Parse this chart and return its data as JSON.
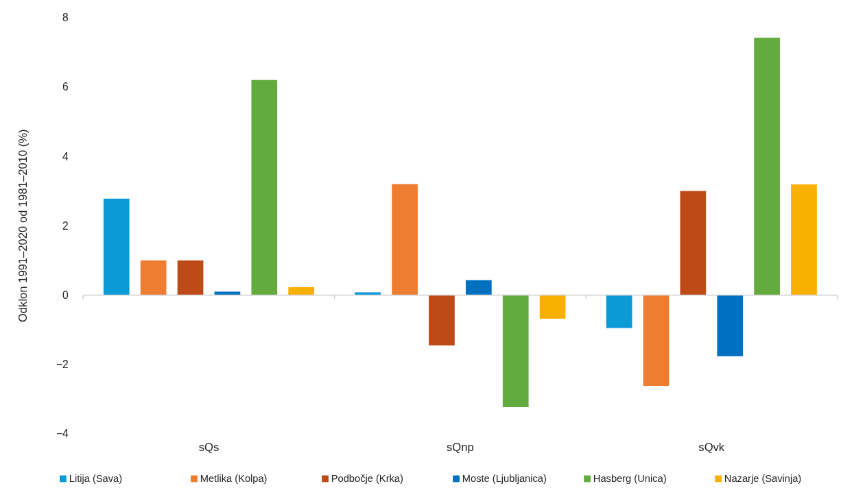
{
  "chart_data": {
    "type": "bar",
    "ylabel": "Odklon 1991–2020 od 1981–2010 (%)",
    "categories": [
      "sQs",
      "sQnp",
      "sQvk"
    ],
    "series": [
      {
        "name": "Litija (Sava)",
        "color": "#0a9ad6",
        "values": [
          2.78,
          0.08,
          -0.95
        ]
      },
      {
        "name": "Metlika (Kolpa)",
        "color": "#ee7d31",
        "values": [
          1.0,
          3.2,
          -2.62
        ]
      },
      {
        "name": "Podbočje (Krka)",
        "color": "#be4b17",
        "values": [
          1.0,
          -1.45,
          3.0
        ]
      },
      {
        "name": "Moste (Ljubljanica)",
        "color": "#0070c0",
        "values": [
          0.1,
          0.43,
          -1.76
        ]
      },
      {
        "name": "Hasberg (Unica)",
        "color": "#62ab3c",
        "values": [
          6.2,
          -3.23,
          7.42
        ]
      },
      {
        "name": "Nazarje (Savinja)",
        "color": "#f9b000",
        "values": [
          0.23,
          -0.68,
          3.19
        ]
      }
    ],
    "ylim": [
      -4,
      8
    ],
    "yticks": [
      {
        "value": -4,
        "label": "−4"
      },
      {
        "value": -2,
        "label": "−2"
      },
      0,
      2,
      4,
      6,
      8
    ],
    "legend": "bottom"
  }
}
